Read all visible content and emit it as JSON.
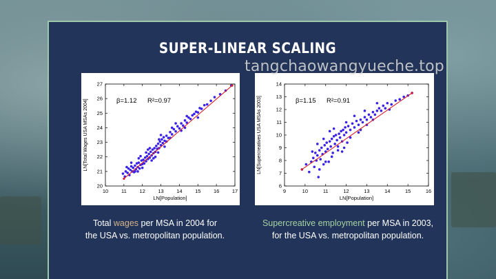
{
  "slide": {
    "title": "SUPER-LINEAR SCALING",
    "watermark": "tangchaowangyueche.top",
    "colors": {
      "panel": "#223459",
      "border": "#9fc7a9",
      "highlight_left": "#d8b38a",
      "highlight_right": "#a6d3a3",
      "points": "#3a22e6",
      "fit_line": "#d81e2a"
    }
  },
  "captions": {
    "left": {
      "pre": "Total ",
      "highlight": "wages",
      "post": " per MSA in 2004 for",
      "line2": "the USA vs. metropolitan population."
    },
    "right": {
      "highlight": "Supercreative employment",
      "post": " per MSA in 2003,",
      "line2": "for the USA vs. metropolitan population."
    }
  },
  "chart_data": [
    {
      "type": "scatter",
      "title": "",
      "xlabel": "LN[Population]",
      "ylabel": "LN[Total Wages USA MSAs 2004]",
      "annotation_beta": "β=1.12",
      "annotation_r2": "R²=0.97",
      "xlim": [
        10,
        17
      ],
      "ylim": [
        20,
        27
      ],
      "xticks": [
        10,
        11,
        12,
        13,
        14,
        15,
        16,
        17
      ],
      "yticks": [
        20,
        21,
        22,
        23,
        24,
        25,
        26,
        27
      ],
      "fit": {
        "x": [
          11.0,
          16.85
        ],
        "y": [
          20.5,
          26.9
        ]
      },
      "points": [
        [
          10.95,
          20.85
        ],
        [
          11.05,
          20.65
        ],
        [
          11.1,
          21.0
        ],
        [
          11.2,
          20.9
        ],
        [
          11.25,
          21.2
        ],
        [
          11.3,
          20.75
        ],
        [
          11.35,
          21.1
        ],
        [
          11.4,
          21.35
        ],
        [
          11.45,
          21.0
        ],
        [
          11.5,
          21.25
        ],
        [
          11.55,
          20.95
        ],
        [
          11.6,
          21.4
        ],
        [
          11.65,
          21.15
        ],
        [
          11.7,
          21.55
        ],
        [
          11.75,
          21.3
        ],
        [
          11.8,
          21.6
        ],
        [
          11.85,
          21.2
        ],
        [
          11.9,
          21.45
        ],
        [
          11.95,
          21.75
        ],
        [
          12.0,
          21.5
        ],
        [
          12.05,
          21.8
        ],
        [
          12.1,
          21.55
        ],
        [
          12.15,
          21.95
        ],
        [
          12.2,
          21.7
        ],
        [
          12.25,
          22.05
        ],
        [
          12.3,
          21.85
        ],
        [
          12.35,
          22.2
        ],
        [
          12.4,
          21.95
        ],
        [
          12.45,
          22.35
        ],
        [
          12.5,
          22.1
        ],
        [
          12.55,
          22.5
        ],
        [
          12.6,
          22.25
        ],
        [
          12.65,
          22.6
        ],
        [
          12.7,
          22.35
        ],
        [
          12.75,
          22.75
        ],
        [
          12.8,
          22.55
        ],
        [
          12.85,
          22.9
        ],
        [
          12.9,
          22.6
        ],
        [
          12.95,
          23.05
        ],
        [
          13.0,
          22.8
        ],
        [
          13.05,
          23.2
        ],
        [
          13.1,
          22.95
        ],
        [
          13.15,
          23.35
        ],
        [
          13.2,
          23.1
        ],
        [
          13.3,
          23.45
        ],
        [
          13.4,
          23.3
        ],
        [
          13.5,
          23.7
        ],
        [
          13.6,
          23.55
        ],
        [
          13.7,
          23.9
        ],
        [
          13.8,
          23.75
        ],
        [
          13.9,
          24.1
        ],
        [
          14.0,
          23.95
        ],
        [
          14.1,
          24.3
        ],
        [
          14.2,
          24.15
        ],
        [
          14.3,
          24.5
        ],
        [
          14.4,
          24.35
        ],
        [
          14.5,
          24.7
        ],
        [
          14.6,
          24.6
        ],
        [
          14.7,
          24.85
        ],
        [
          14.8,
          24.95
        ],
        [
          14.9,
          25.1
        ],
        [
          15.0,
          25.05
        ],
        [
          15.1,
          25.35
        ],
        [
          15.2,
          25.3
        ],
        [
          15.35,
          25.55
        ],
        [
          15.5,
          25.6
        ],
        [
          15.7,
          25.85
        ],
        [
          15.9,
          26.1
        ],
        [
          16.2,
          26.3
        ],
        [
          16.5,
          26.55
        ],
        [
          16.8,
          26.9
        ],
        [
          11.6,
          21.0
        ],
        [
          11.8,
          21.9
        ],
        [
          12.0,
          21.25
        ],
        [
          12.3,
          22.5
        ],
        [
          12.6,
          21.9
        ],
        [
          12.9,
          23.2
        ],
        [
          13.2,
          22.7
        ],
        [
          13.5,
          23.3
        ],
        [
          13.8,
          24.3
        ],
        [
          14.1,
          23.8
        ],
        [
          14.4,
          24.8
        ],
        [
          12.2,
          22.3
        ],
        [
          11.4,
          21.6
        ],
        [
          11.9,
          22.05
        ],
        [
          12.5,
          21.75
        ],
        [
          13.0,
          23.5
        ],
        [
          13.6,
          24.0
        ],
        [
          14.3,
          24.0
        ],
        [
          15.0,
          24.7
        ],
        [
          12.4,
          22.6
        ],
        [
          12.7,
          22.0
        ],
        [
          13.3,
          23.05
        ],
        [
          11.15,
          21.3
        ],
        [
          11.75,
          21.0
        ],
        [
          12.85,
          22.3
        ]
      ]
    },
    {
      "type": "scatter",
      "title": "",
      "xlabel": "LN[Population]",
      "ylabel": "LN[Supercreatives USA MSAs 2003]",
      "annotation_beta": "β=1.15",
      "annotation_r2": "R²=0.91",
      "xlim": [
        9,
        16
      ],
      "ylim": [
        6,
        14
      ],
      "xticks": [
        9,
        10,
        11,
        12,
        13,
        14,
        15,
        16
      ],
      "yticks": [
        6,
        7,
        8,
        9,
        10,
        11,
        12,
        13,
        14
      ],
      "fit": {
        "x": [
          9.85,
          15.2
        ],
        "y": [
          7.3,
          13.3
        ]
      },
      "points": [
        [
          9.85,
          7.3
        ],
        [
          10.05,
          7.7
        ],
        [
          10.2,
          7.1
        ],
        [
          10.3,
          7.9
        ],
        [
          10.4,
          8.2
        ],
        [
          10.45,
          7.5
        ],
        [
          10.5,
          8.6
        ],
        [
          10.55,
          8.0
        ],
        [
          10.6,
          8.4
        ],
        [
          10.65,
          6.7
        ],
        [
          10.7,
          8.8
        ],
        [
          10.75,
          8.1
        ],
        [
          10.8,
          9.0
        ],
        [
          10.85,
          8.5
        ],
        [
          10.9,
          7.7
        ],
        [
          10.95,
          9.2
        ],
        [
          11.0,
          8.7
        ],
        [
          11.05,
          9.4
        ],
        [
          11.1,
          8.9
        ],
        [
          11.15,
          7.9
        ],
        [
          11.2,
          9.5
        ],
        [
          11.25,
          9.1
        ],
        [
          11.3,
          9.7
        ],
        [
          11.35,
          8.6
        ],
        [
          11.4,
          9.9
        ],
        [
          11.45,
          9.3
        ],
        [
          11.5,
          10.0
        ],
        [
          11.55,
          9.6
        ],
        [
          11.6,
          8.8
        ],
        [
          11.65,
          10.1
        ],
        [
          11.7,
          9.8
        ],
        [
          11.75,
          10.3
        ],
        [
          11.8,
          9.5
        ],
        [
          11.85,
          10.4
        ],
        [
          11.9,
          10.0
        ],
        [
          11.95,
          10.6
        ],
        [
          12.0,
          10.2
        ],
        [
          12.05,
          9.4
        ],
        [
          12.1,
          10.7
        ],
        [
          12.2,
          10.4
        ],
        [
          12.3,
          10.9
        ],
        [
          12.4,
          10.6
        ],
        [
          12.5,
          11.1
        ],
        [
          12.6,
          10.8
        ],
        [
          12.7,
          11.2
        ],
        [
          12.8,
          11.0
        ],
        [
          12.9,
          11.4
        ],
        [
          13.0,
          11.2
        ],
        [
          13.1,
          11.6
        ],
        [
          13.2,
          11.4
        ],
        [
          13.3,
          11.8
        ],
        [
          13.4,
          11.6
        ],
        [
          13.5,
          11.9
        ],
        [
          13.6,
          12.1
        ],
        [
          13.7,
          11.9
        ],
        [
          13.8,
          12.3
        ],
        [
          13.9,
          12.1
        ],
        [
          14.0,
          12.5
        ],
        [
          14.2,
          12.4
        ],
        [
          14.4,
          12.7
        ],
        [
          14.6,
          12.8
        ],
        [
          14.8,
          13.0
        ],
        [
          15.0,
          13.1
        ],
        [
          15.2,
          13.3
        ],
        [
          10.7,
          7.3
        ],
        [
          11.0,
          7.9
        ],
        [
          11.3,
          8.3
        ],
        [
          10.9,
          9.7
        ],
        [
          11.6,
          9.1
        ],
        [
          12.2,
          9.8
        ],
        [
          12.7,
          10.4
        ],
        [
          11.4,
          10.5
        ],
        [
          12.0,
          11.0
        ],
        [
          13.0,
          10.8
        ],
        [
          13.5,
          12.5
        ],
        [
          11.8,
          8.7
        ],
        [
          12.4,
          11.5
        ],
        [
          10.6,
          9.3
        ],
        [
          11.2,
          10.3
        ],
        [
          12.9,
          11.9
        ],
        [
          14.1,
          12.0
        ],
        [
          10.35,
          8.7
        ],
        [
          11.9,
          9.0
        ],
        [
          12.6,
          10.2
        ],
        [
          13.3,
          11.2
        ]
      ]
    }
  ]
}
